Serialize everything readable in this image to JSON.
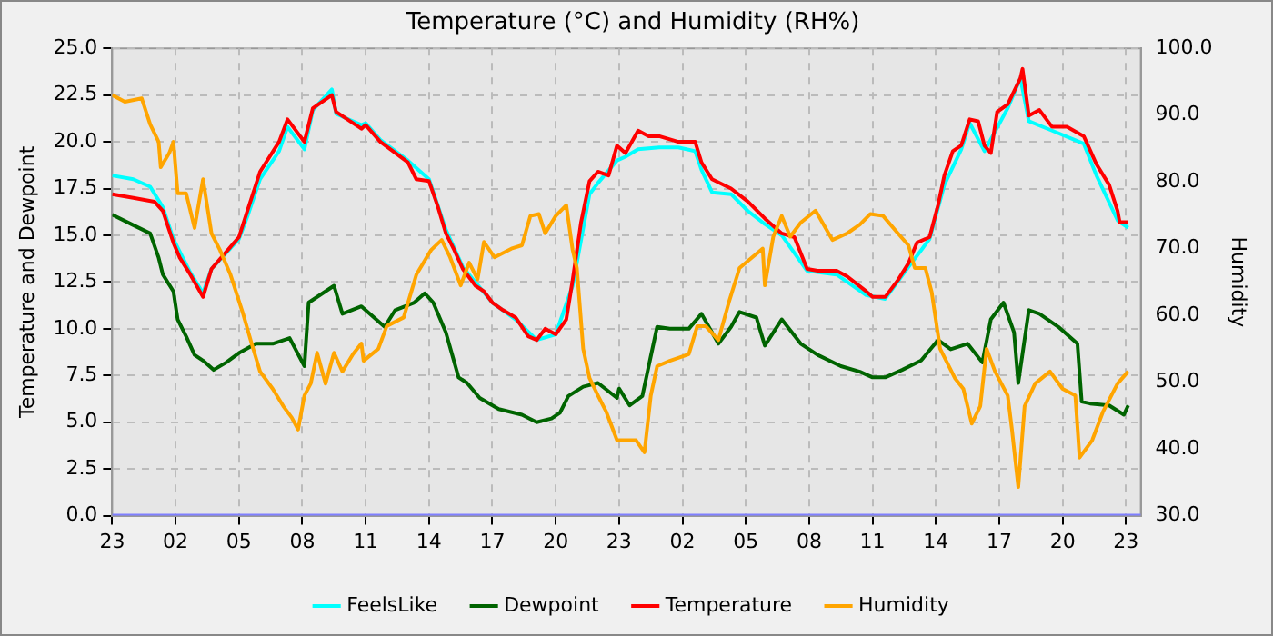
{
  "chart_data": {
    "type": "line",
    "title": "Temperature (°C) and Humidity (RH%)",
    "ylabel": "Temperature and Dewpoint",
    "y2label": "Humidity",
    "xlim": [
      "--01-01T23:00",
      "--01-03T23:42"
    ],
    "xticks": [
      {
        "value": "--01-01T23:00",
        "label": "23"
      },
      {
        "value": "--01-02T02:00",
        "label": "02"
      },
      {
        "value": "--01-02T05:00",
        "label": "05"
      },
      {
        "value": "--01-02T08:00",
        "label": "08"
      },
      {
        "value": "--01-02T11:00",
        "label": "11"
      },
      {
        "value": "--01-02T14:00",
        "label": "14"
      },
      {
        "value": "--01-02T17:00",
        "label": "17"
      },
      {
        "value": "--01-02T20:00",
        "label": "20"
      },
      {
        "value": "--01-02T23:00",
        "label": "23"
      },
      {
        "value": "--01-03T02:00",
        "label": "02"
      },
      {
        "value": "--01-03T05:00",
        "label": "05"
      },
      {
        "value": "--01-03T08:00",
        "label": "08"
      },
      {
        "value": "--01-03T11:00",
        "label": "11"
      },
      {
        "value": "--01-03T14:00",
        "label": "14"
      },
      {
        "value": "--01-03T17:00",
        "label": "17"
      },
      {
        "value": "--01-03T20:00",
        "label": "20"
      },
      {
        "value": "--01-03T23:00",
        "label": "23"
      }
    ],
    "ylim": [
      0,
      25
    ],
    "yticks": [
      {
        "value": 0,
        "label": "0.0"
      },
      {
        "value": 2.5,
        "label": "2.5"
      },
      {
        "value": 5,
        "label": "5.0"
      },
      {
        "value": 7.5,
        "label": "7.5"
      },
      {
        "value": 10,
        "label": "10.0"
      },
      {
        "value": 12.5,
        "label": "12.5"
      },
      {
        "value": 15,
        "label": "15.0"
      },
      {
        "value": 17.5,
        "label": "17.5"
      },
      {
        "value": 20,
        "label": "20.0"
      },
      {
        "value": 22.5,
        "label": "22.5"
      },
      {
        "value": 25,
        "label": "25.0"
      }
    ],
    "y2lim": [
      30,
      100
    ],
    "y2ticks": [
      {
        "value": 30,
        "label": "30.0"
      },
      {
        "value": 40,
        "label": "40.0"
      },
      {
        "value": 50,
        "label": "50.0"
      },
      {
        "value": 60,
        "label": "60.0"
      },
      {
        "value": 70,
        "label": "70.0"
      },
      {
        "value": 80,
        "label": "80.0"
      },
      {
        "value": 90,
        "label": "90.0"
      },
      {
        "value": 100,
        "label": "100.0"
      }
    ],
    "grid": true,
    "legend": "bottom",
    "marker": "none",
    "line_style": "solid",
    "series": [
      {
        "name": "FeelsLike",
        "color": "#00ffff",
        "x": [
          "--01-01T23:00",
          "--01-02T00:00",
          "--01-02T00:48",
          "--01-02T01:24",
          "--01-02T01:54",
          "--01-02T02:42",
          "--01-02T03:18",
          "--01-02T03:42",
          "--01-02T05:00",
          "--01-02T05:24",
          "--01-02T06:00",
          "--01-02T06:54",
          "--01-02T07:18",
          "--01-02T08:06",
          "--01-02T08:30",
          "--01-02T09:24",
          "--01-02T09:36",
          "--01-02T10:48",
          "--01-02T11:00",
          "--01-02T11:42",
          "--01-02T13:00",
          "--01-02T14:00",
          "--01-02T14:48",
          "--01-02T15:36",
          "--01-02T17:00",
          "--01-02T18:06",
          "--01-02T19:06",
          "--01-02T20:00",
          "--01-02T20:48",
          "--01-02T21:36",
          "--01-02T22:00",
          "--01-02T22:54",
          "--01-02T23:18",
          "--01-02T23:54",
          "--01-03T00:54",
          "--01-03T01:48",
          "--01-03T02:36",
          "--01-03T02:54",
          "--01-03T03:24",
          "--01-03T04:18",
          "--01-03T05:06",
          "--01-03T05:54",
          "--01-03T06:42",
          "--01-03T07:54",
          "--01-03T09:18",
          "--01-03T10:42",
          "--01-03T11:36",
          "--01-03T12:42",
          "--01-03T13:42",
          "--01-03T14:24",
          "--01-03T15:12",
          "--01-03T15:36",
          "--01-03T16:18",
          "--01-03T17:24",
          "--01-03T18:00",
          "--01-03T18:24",
          "--01-03T19:30",
          "--01-03T21:00",
          "--01-03T21:36",
          "--01-03T22:36",
          "--01-03T23:06"
        ],
        "values": [
          18.2,
          18.0,
          17.6,
          16.5,
          14.8,
          13.0,
          11.9,
          13.2,
          14.8,
          16.0,
          18.0,
          19.5,
          20.8,
          19.6,
          21.7,
          22.8,
          21.5,
          20.9,
          21.0,
          20.1,
          19.0,
          18.0,
          15.3,
          13.3,
          11.4,
          10.5,
          9.4,
          9.7,
          12.3,
          17.2,
          17.8,
          19.0,
          19.2,
          19.6,
          19.7,
          19.7,
          19.5,
          18.5,
          17.3,
          17.2,
          16.3,
          15.6,
          15.0,
          13.1,
          12.9,
          11.8,
          11.6,
          13.3,
          14.8,
          17.7,
          19.6,
          21.0,
          19.5,
          21.8,
          23.4,
          21.1,
          20.6,
          19.9,
          18.2,
          15.8,
          15.4
        ]
      },
      {
        "name": "Dewpoint",
        "color": "#006400",
        "x": [
          "--01-01T23:00",
          "--01-01T23:54",
          "--01-02T00:48",
          "--01-02T01:12",
          "--01-02T01:24",
          "--01-02T01:54",
          "--01-02T02:06",
          "--01-02T02:30",
          "--01-02T02:54",
          "--01-02T03:18",
          "--01-02T03:48",
          "--01-02T04:24",
          "--01-02T05:00",
          "--01-02T05:48",
          "--01-02T06:36",
          "--01-02T07:24",
          "--01-02T08:06",
          "--01-02T08:18",
          "--01-02T09:30",
          "--01-02T09:54",
          "--01-02T10:48",
          "--01-02T11:54",
          "--01-02T12:24",
          "--01-02T13:18",
          "--01-02T13:48",
          "--01-02T14:12",
          "--01-02T14:48",
          "--01-02T15:24",
          "--01-02T15:48",
          "--01-02T16:24",
          "--01-02T17:18",
          "--01-02T18:24",
          "--01-02T19:06",
          "--01-02T19:48",
          "--01-02T20:12",
          "--01-02T20:36",
          "--01-02T21:18",
          "--01-02T22:00",
          "--01-02T22:54",
          "--01-02T23:00",
          "--01-02T23:30",
          "--01-03T00:06",
          "--01-03T00:24",
          "--01-03T00:48",
          "--01-03T01:24",
          "--01-03T02:18",
          "--01-03T02:54",
          "--01-03T03:42",
          "--01-03T04:18",
          "--01-03T04:42",
          "--01-03T05:30",
          "--01-03T05:54",
          "--01-03T06:42",
          "--01-03T07:36",
          "--01-03T08:24",
          "--01-03T09:30",
          "--01-03T10:24",
          "--01-03T11:00",
          "--01-03T11:36",
          "--01-03T12:24",
          "--01-03T13:18",
          "--01-03T14:06",
          "--01-03T14:42",
          "--01-03T15:30",
          "--01-03T16:12",
          "--01-03T16:36",
          "--01-03T17:12",
          "--01-03T17:42",
          "--01-03T17:54",
          "--01-03T18:24",
          "--01-03T18:54",
          "--01-03T19:48",
          "--01-03T20:42",
          "--01-03T20:54",
          "--01-03T21:18",
          "--01-03T22:12",
          "--01-03T22:54",
          "--01-03T23:06"
        ],
        "values": [
          16.1,
          15.6,
          15.1,
          13.8,
          12.9,
          12.0,
          10.5,
          9.6,
          8.6,
          8.3,
          7.8,
          8.2,
          8.7,
          9.2,
          9.2,
          9.5,
          8.0,
          11.4,
          12.3,
          10.8,
          11.2,
          10.1,
          11.0,
          11.4,
          11.9,
          11.4,
          9.8,
          7.4,
          7.1,
          6.3,
          5.7,
          5.4,
          5.0,
          5.2,
          5.5,
          6.4,
          6.9,
          7.1,
          6.3,
          6.8,
          5.9,
          6.4,
          8.0,
          10.1,
          10.0,
          10.0,
          10.8,
          9.2,
          10.1,
          10.9,
          10.6,
          9.1,
          10.5,
          9.2,
          8.6,
          8.0,
          7.7,
          7.4,
          7.4,
          7.8,
          8.3,
          9.4,
          8.9,
          9.2,
          8.2,
          10.5,
          11.4,
          9.8,
          7.1,
          11.0,
          10.8,
          10.1,
          9.2,
          6.1,
          6.0,
          5.9,
          5.4,
          5.9
        ]
      },
      {
        "name": "Temperature",
        "color": "#ff0000",
        "x": [
          "--01-01T23:00",
          "--01-02T00:00",
          "--01-02T01:00",
          "--01-02T01:24",
          "--01-02T01:54",
          "--01-02T02:12",
          "--01-02T02:42",
          "--01-02T03:18",
          "--01-02T03:42",
          "--01-02T05:00",
          "--01-02T05:24",
          "--01-02T06:00",
          "--01-02T06:54",
          "--01-02T07:18",
          "--01-02T08:06",
          "--01-02T08:30",
          "--01-02T09:24",
          "--01-02T09:36",
          "--01-02T10:48",
          "--01-02T11:00",
          "--01-02T11:42",
          "--01-02T13:00",
          "--01-02T13:24",
          "--01-02T14:00",
          "--01-02T14:24",
          "--01-02T14:48",
          "--01-02T15:12",
          "--01-02T15:36",
          "--01-02T16:12",
          "--01-02T16:36",
          "--01-02T17:00",
          "--01-02T17:30",
          "--01-02T18:06",
          "--01-02T18:42",
          "--01-02T19:06",
          "--01-02T19:30",
          "--01-02T20:00",
          "--01-02T20:30",
          "--01-02T20:48",
          "--01-02T21:12",
          "--01-02T21:36",
          "--01-02T22:00",
          "--01-02T22:30",
          "--01-02T22:54",
          "--01-02T23:18",
          "--01-02T23:54",
          "--01-03T00:24",
          "--01-03T00:54",
          "--01-03T01:48",
          "--01-03T02:36",
          "--01-03T02:54",
          "--01-03T03:24",
          "--01-03T04:18",
          "--01-03T05:06",
          "--01-03T05:54",
          "--01-03T06:42",
          "--01-03T07:18",
          "--01-03T07:54",
          "--01-03T08:24",
          "--01-03T09:18",
          "--01-03T09:48",
          "--01-03T10:42",
          "--01-03T11:00",
          "--01-03T11:36",
          "--01-03T12:12",
          "--01-03T12:42",
          "--01-03T13:06",
          "--01-03T13:42",
          "--01-03T14:06",
          "--01-03T14:24",
          "--01-03T14:48",
          "--01-03T15:12",
          "--01-03T15:36",
          "--01-03T16:00",
          "--01-03T16:18",
          "--01-03T16:36",
          "--01-03T16:54",
          "--01-03T17:24",
          "--01-03T18:00",
          "--01-03T18:06",
          "--01-03T18:24",
          "--01-03T18:54",
          "--01-03T19:30",
          "--01-03T20:12",
          "--01-03T21:00",
          "--01-03T21:36",
          "--01-03T22:12",
          "--01-03T22:36",
          "--01-03T22:42",
          "--01-03T23:06"
        ],
        "values": [
          17.2,
          17.0,
          16.8,
          16.3,
          14.6,
          13.8,
          12.9,
          11.7,
          13.2,
          14.9,
          16.3,
          18.4,
          20.0,
          21.2,
          20.0,
          21.8,
          22.5,
          21.6,
          20.7,
          20.9,
          20.0,
          18.9,
          18.0,
          17.9,
          16.6,
          15.1,
          14.2,
          13.2,
          12.3,
          12.0,
          11.4,
          11.0,
          10.6,
          9.6,
          9.4,
          10.0,
          9.7,
          10.5,
          12.6,
          15.7,
          17.9,
          18.4,
          18.2,
          19.8,
          19.4,
          20.6,
          20.3,
          20.3,
          20.0,
          20.0,
          18.9,
          18.0,
          17.5,
          16.8,
          15.9,
          15.1,
          14.9,
          13.2,
          13.1,
          13.1,
          12.8,
          12.0,
          11.7,
          11.7,
          12.6,
          13.5,
          14.6,
          14.9,
          16.6,
          18.2,
          19.5,
          19.8,
          21.2,
          21.1,
          19.8,
          19.4,
          21.6,
          22.0,
          23.4,
          23.9,
          21.4,
          21.7,
          20.8,
          20.8,
          20.3,
          18.8,
          17.7,
          16.3,
          15.7,
          15.7
        ]
      },
      {
        "name": "Humidity",
        "color": "#ffa500",
        "axis": "y2",
        "x": [
          "--01-01T23:00",
          "--01-01T23:36",
          "--01-02T00:24",
          "--01-02T00:48",
          "--01-02T01:12",
          "--01-02T01:18",
          "--01-02T01:42",
          "--01-02T01:54",
          "--01-02T02:06",
          "--01-02T02:30",
          "--01-02T02:54",
          "--01-02T03:18",
          "--01-02T03:42",
          "--01-02T04:06",
          "--01-02T04:36",
          "--01-02T05:12",
          "--01-02T05:36",
          "--01-02T06:00",
          "--01-02T06:36",
          "--01-02T07:06",
          "--01-02T07:30",
          "--01-02T07:48",
          "--01-02T08:06",
          "--01-02T08:24",
          "--01-02T08:42",
          "--01-02T09:06",
          "--01-02T09:30",
          "--01-02T09:54",
          "--01-02T10:24",
          "--01-02T10:48",
          "--01-02T10:54",
          "--01-02T11:36",
          "--01-02T12:00",
          "--01-02T12:48",
          "--01-02T13:24",
          "--01-02T14:06",
          "--01-02T14:36",
          "--01-02T15:00",
          "--01-02T15:30",
          "--01-02T15:54",
          "--01-02T16:18",
          "--01-02T16:36",
          "--01-02T17:06",
          "--01-02T17:54",
          "--01-02T18:24",
          "--01-02T18:48",
          "--01-02T19:12",
          "--01-02T19:30",
          "--01-02T20:00",
          "--01-02T20:30",
          "--01-02T20:48",
          "--01-02T21:00",
          "--01-02T21:18",
          "--01-02T21:36",
          "--01-02T22:00",
          "--01-02T22:24",
          "--01-02T22:54",
          "--01-02T23:48",
          "--01-03T00:12",
          "--01-03T00:30",
          "--01-03T00:48",
          "--01-03T01:24",
          "--01-03T02:18",
          "--01-03T02:42",
          "--01-03T03:06",
          "--01-03T03:42",
          "--01-03T04:12",
          "--01-03T04:42",
          "--01-03T05:18",
          "--01-03T05:48",
          "--01-03T05:54",
          "--01-03T06:18",
          "--01-03T06:42",
          "--01-03T07:06",
          "--01-03T07:36",
          "--01-03T08:18",
          "--01-03T09:06",
          "--01-03T09:48",
          "--01-03T10:24",
          "--01-03T10:54",
          "--01-03T11:30",
          "--01-03T12:12",
          "--01-03T12:42",
          "--01-03T13:00",
          "--01-03T13:30",
          "--01-03T13:48",
          "--01-03T14:12",
          "--01-03T14:54",
          "--01-03T15:18",
          "--01-03T15:42",
          "--01-03T16:06",
          "--01-03T16:24",
          "--01-03T16:48",
          "--01-03T17:24",
          "--01-03T17:36",
          "--01-03T17:54",
          "--01-03T18:12",
          "--01-03T18:42",
          "--01-03T19:24",
          "--01-03T20:00",
          "--01-03T20:36",
          "--01-03T20:48",
          "--01-03T21:24",
          "--01-03T21:54",
          "--01-03T22:36",
          "--01-03T23:06"
        ],
        "values": [
          93.0,
          92.0,
          92.5,
          88.6,
          86.0,
          82.2,
          84.3,
          86.0,
          78.3,
          78.3,
          73.1,
          80.4,
          72.3,
          69.8,
          66.1,
          60.2,
          55.8,
          51.6,
          49.0,
          46.4,
          44.7,
          42.9,
          48.0,
          49.8,
          54.4,
          49.8,
          54.4,
          51.6,
          54.2,
          55.8,
          53.2,
          55.0,
          58.4,
          59.7,
          66.1,
          69.8,
          71.3,
          68.7,
          64.5,
          67.9,
          65.4,
          71.0,
          68.7,
          70.0,
          70.5,
          74.9,
          75.2,
          72.3,
          74.9,
          76.5,
          69.8,
          67.1,
          55.0,
          50.6,
          48.0,
          45.5,
          41.3,
          41.3,
          39.5,
          48.0,
          52.4,
          53.2,
          54.2,
          58.4,
          58.4,
          56.3,
          62.0,
          67.1,
          68.7,
          70.0,
          64.5,
          71.8,
          74.9,
          71.8,
          73.9,
          75.7,
          71.3,
          72.3,
          73.6,
          75.2,
          74.9,
          72.3,
          70.5,
          67.1,
          67.1,
          63.5,
          55.0,
          50.6,
          49.0,
          43.8,
          46.4,
          55.0,
          51.6,
          48.0,
          42.9,
          34.3,
          46.4,
          49.8,
          51.6,
          49.0,
          48.0,
          38.7,
          41.3,
          45.5,
          49.8,
          51.6
        ]
      },
      {
        "color": "#7f7fff",
        "x": [
          "--01-01T23:00",
          "--01-03T23:42"
        ],
        "values": [
          0,
          0
        ]
      }
    ]
  }
}
